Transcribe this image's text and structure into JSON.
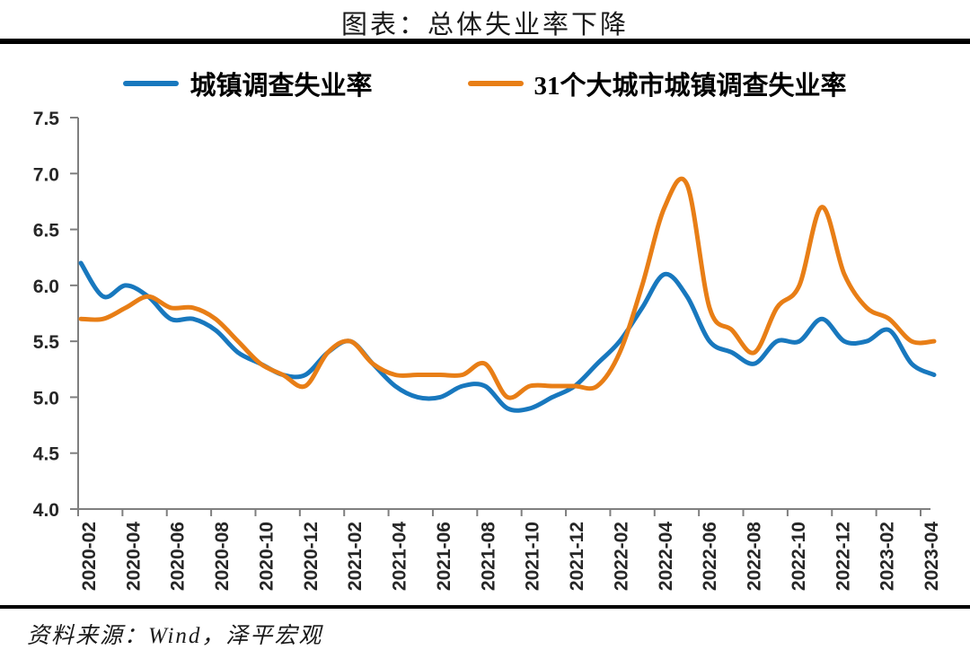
{
  "header": {
    "title": "图表：总体失业率下降"
  },
  "footer": {
    "source": "资料来源：Wind，泽平宏观"
  },
  "chart_data": {
    "type": "line",
    "title": "图表：总体失业率下降",
    "x": [
      "2020-02",
      "2020-03",
      "2020-04",
      "2020-05",
      "2020-06",
      "2020-07",
      "2020-08",
      "2020-09",
      "2020-10",
      "2020-11",
      "2020-12",
      "2021-01",
      "2021-02",
      "2021-03",
      "2021-04",
      "2021-05",
      "2021-06",
      "2021-07",
      "2021-08",
      "2021-09",
      "2021-10",
      "2021-11",
      "2021-12",
      "2022-01",
      "2022-02",
      "2022-03",
      "2022-04",
      "2022-05",
      "2022-06",
      "2022-07",
      "2022-08",
      "2022-09",
      "2022-10",
      "2022-11",
      "2022-12",
      "2023-01",
      "2023-02",
      "2023-03",
      "2023-04"
    ],
    "x_tick_labels": [
      "2020-02",
      "2020-04",
      "2020-06",
      "2020-08",
      "2020-10",
      "2020-12",
      "2021-02",
      "2021-04",
      "2021-06",
      "2021-08",
      "2021-10",
      "2021-12",
      "2022-02",
      "2022-04",
      "2022-06",
      "2022-08",
      "2022-10",
      "2022-12",
      "2023-02",
      "2023-04"
    ],
    "series": [
      {
        "name": "城镇调查失业率",
        "color": "#1878BE",
        "values": [
          6.2,
          5.9,
          6.0,
          5.9,
          5.7,
          5.7,
          5.6,
          5.4,
          5.3,
          5.2,
          5.2,
          5.4,
          5.5,
          5.3,
          5.1,
          5.0,
          5.0,
          5.1,
          5.1,
          4.9,
          4.9,
          5.0,
          5.1,
          5.3,
          5.5,
          5.8,
          6.1,
          5.9,
          5.5,
          5.4,
          5.3,
          5.5,
          5.5,
          5.7,
          5.5,
          5.5,
          5.6,
          5.3,
          5.2
        ]
      },
      {
        "name": "31个大城市城镇调查失业率",
        "color": "#E87E16",
        "values": [
          5.7,
          5.7,
          5.8,
          5.9,
          5.8,
          5.8,
          5.7,
          5.5,
          5.3,
          5.2,
          5.1,
          5.4,
          5.5,
          5.3,
          5.2,
          5.2,
          5.2,
          5.2,
          5.3,
          5.0,
          5.1,
          5.1,
          5.1,
          5.1,
          5.4,
          6.0,
          6.7,
          6.9,
          5.8,
          5.6,
          5.4,
          5.8,
          6.0,
          6.7,
          6.1,
          5.8,
          5.7,
          5.5,
          5.5
        ]
      }
    ],
    "ylim": [
      4.0,
      7.5
    ],
    "y_ticks": [
      4.0,
      4.5,
      5.0,
      5.5,
      6.0,
      6.5,
      7.0,
      7.5
    ],
    "xlabel": "",
    "ylabel": "",
    "grid": false,
    "legend_position": "top",
    "smooth": true,
    "axis_color": "#7f7f7f",
    "line_width": 5
  }
}
